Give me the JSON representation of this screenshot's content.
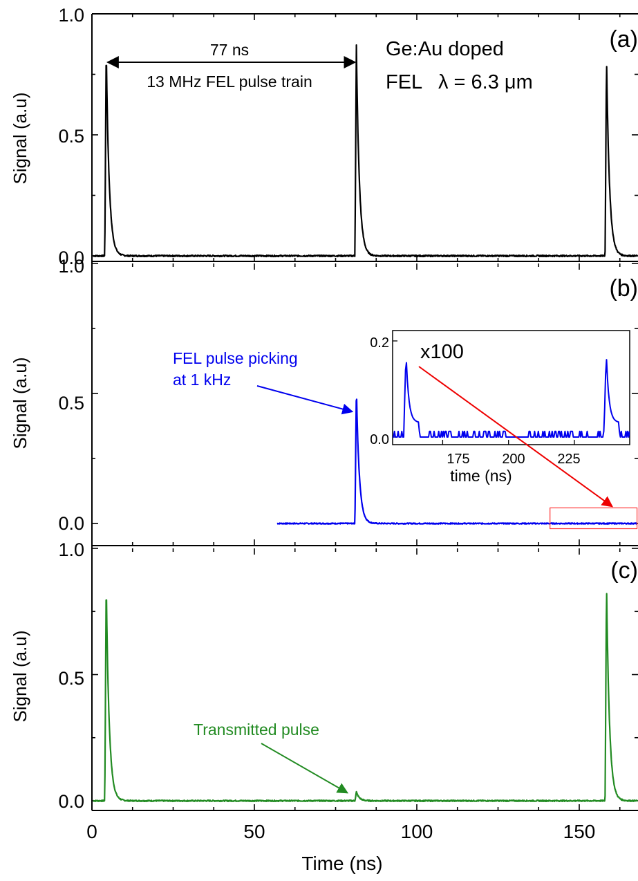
{
  "figure": {
    "xlabel": "Time (ns)",
    "x_ticks": [
      "0",
      "50",
      "100",
      "150"
    ]
  },
  "chart_data": [
    {
      "type": "line",
      "panel_label": "(a)",
      "ylabel": "Signal (a.u)",
      "xlim": [
        0,
        168
      ],
      "ylim": [
        0,
        1.0
      ],
      "y_ticks": [
        "0.0",
        "0.5",
        "1.0"
      ],
      "grid": false,
      "series": [
        {
          "color": "#000000",
          "pulses": [
            {
              "t": 4.4,
              "peak": 0.86
            },
            {
              "t": 81.4,
              "peak": 0.87
            },
            {
              "t": 158.4,
              "peak": 0.82
            }
          ]
        }
      ],
      "annotations": {
        "period_value": "77 ns",
        "train_label": "13 MHz FEL pulse train",
        "period_arrow": [
          4.4,
          81.4
        ],
        "period_arrow_y": 0.8,
        "sample_line1": "Ge:Au doped",
        "sample_line2_prefix": "FEL",
        "sample_line2_lambda": "λ = 6.3 μm"
      }
    },
    {
      "type": "line",
      "panel_label": "(b)",
      "ylabel": "Signal (a.u)",
      "xlim": [
        0,
        168
      ],
      "ylim": [
        0,
        1.0
      ],
      "y_ticks": [
        "0.0",
        "0.5",
        "1.0"
      ],
      "grid": false,
      "series": [
        {
          "color": "#0000ee",
          "x_start": 57,
          "pulses": [
            {
              "t": 81.4,
              "peak": 0.52
            }
          ]
        }
      ],
      "annotations": {
        "pick_line1": "FEL pulse picking",
        "pick_line2": "at 1 kHz",
        "arrow_color": "#0000ee",
        "arrow_tip": [
          81.0,
          0.43
        ],
        "highlight_box": {
          "x": [
            141,
            168
          ],
          "y": [
            -0.02,
            0.06
          ],
          "color": "#ff3333"
        },
        "zoom_arrow_color": "#ee0000"
      },
      "inset": {
        "type": "line",
        "xlabel": "time (ns)",
        "xlim": [
          156,
          246
        ],
        "ylim": [
          -0.01,
          0.22
        ],
        "x_ticks": [
          "175",
          "200",
          "225"
        ],
        "y_ticks": [
          "0.0",
          "0.2"
        ],
        "magnification": "x100",
        "pulses": [
          {
            "t": 161,
            "peak": 0.16
          },
          {
            "t": 237,
            "peak": 0.16
          }
        ]
      }
    },
    {
      "type": "line",
      "panel_label": "(c)",
      "ylabel": "Signal (a.u)",
      "xlim": [
        0,
        168
      ],
      "ylim": [
        0,
        1.0
      ],
      "y_ticks": [
        "0.0",
        "0.5",
        "1.0"
      ],
      "grid": false,
      "series": [
        {
          "color": "#228b22",
          "pulses": [
            {
              "t": 4.4,
              "peak": 0.87
            },
            {
              "t": 81.4,
              "peak": 0.035
            },
            {
              "t": 158.4,
              "peak": 0.86
            }
          ]
        }
      ],
      "annotations": {
        "transmitted_label": "Transmitted pulse",
        "arrow_color": "#228b22",
        "arrow_tip": [
          79.5,
          0.015
        ]
      }
    }
  ]
}
